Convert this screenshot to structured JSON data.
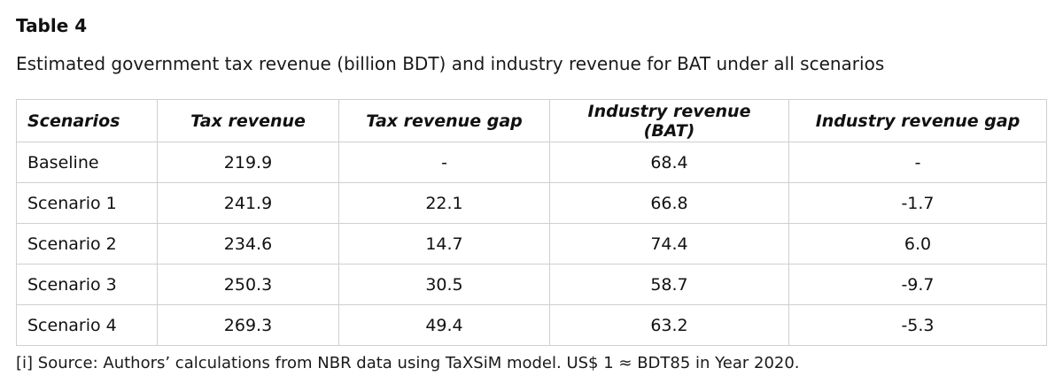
{
  "table": {
    "label": "Table 4",
    "caption": "Estimated government tax revenue (billion BDT) and industry revenue for BAT under all scenarios",
    "headers": [
      "Scenarios",
      "Tax revenue",
      "Tax revenue gap",
      "Industry revenue (BAT)",
      "Industry revenue gap"
    ],
    "rows": [
      [
        "Baseline",
        "219.9",
        "-",
        "68.4",
        "-"
      ],
      [
        "Scenario 1",
        "241.9",
        "22.1",
        "66.8",
        "-1.7"
      ],
      [
        "Scenario 2",
        "234.6",
        "14.7",
        "74.4",
        "6.0"
      ],
      [
        "Scenario 3",
        "250.3",
        "30.5",
        "58.7",
        "-9.7"
      ],
      [
        "Scenario 4",
        "269.3",
        "49.4",
        "63.2",
        "-5.3"
      ]
    ],
    "footnote": "[i] Source: Authors’ calculations from NBR data using TaXSiM model. US$ 1 ≈ BDT85 in Year 2020."
  }
}
